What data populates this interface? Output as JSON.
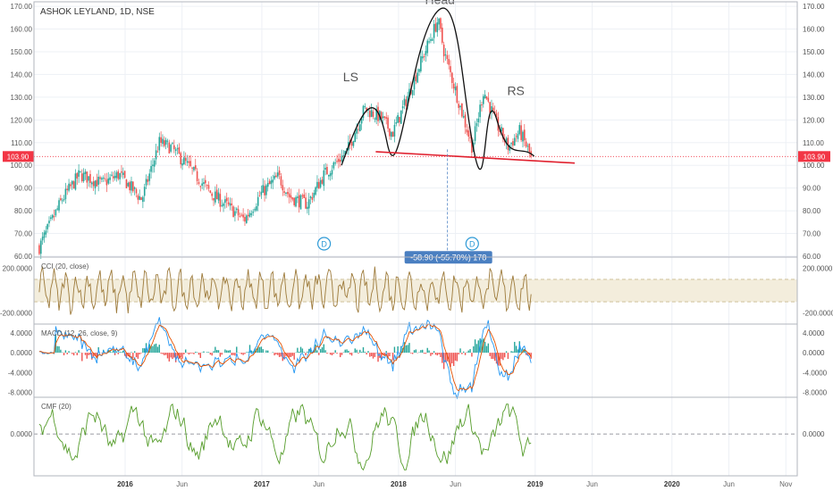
{
  "chart_data": {
    "type": "candlestick",
    "title": "ASHOK LEYLAND, 1D, NSE",
    "price_axis": {
      "ticks": [
        "60.00",
        "70.00",
        "80.00",
        "90.00",
        "100.00",
        "110.00",
        "120.00",
        "130.00",
        "140.00",
        "150.00",
        "160.00",
        "170.00"
      ],
      "ylim": [
        60,
        172
      ]
    },
    "current_price_label": "103.90",
    "time_axis": {
      "labels": [
        "2016",
        "Jun",
        "2017",
        "Jun",
        "2018",
        "Jun",
        "2019",
        "Jun",
        "2020",
        "Jun",
        "Nov"
      ],
      "label_dates": [
        "2016-01",
        "2016-06",
        "2017-01",
        "2017-06",
        "2018-01",
        "2018-06",
        "2019-01",
        "2019-06",
        "2020-01",
        "2020-06",
        "2020-11"
      ],
      "range": [
        "2015-05",
        "2020-12"
      ]
    },
    "price_keypoints": [
      {
        "date": "2015-05-15",
        "value": 64
      },
      {
        "date": "2015-07-15",
        "value": 85
      },
      {
        "date": "2015-09-01",
        "value": 96
      },
      {
        "date": "2015-11-01",
        "value": 92
      },
      {
        "date": "2015-12-15",
        "value": 96
      },
      {
        "date": "2016-02-15",
        "value": 85
      },
      {
        "date": "2016-04-01",
        "value": 110
      },
      {
        "date": "2016-05-01",
        "value": 108
      },
      {
        "date": "2016-06-15",
        "value": 100
      },
      {
        "date": "2016-08-15",
        "value": 88
      },
      {
        "date": "2016-10-01",
        "value": 82
      },
      {
        "date": "2016-11-15",
        "value": 76
      },
      {
        "date": "2017-01-01",
        "value": 88
      },
      {
        "date": "2017-02-15",
        "value": 95
      },
      {
        "date": "2017-03-15",
        "value": 86
      },
      {
        "date": "2017-05-01",
        "value": 83
      },
      {
        "date": "2017-06-15",
        "value": 96
      },
      {
        "date": "2017-08-15",
        "value": 106
      },
      {
        "date": "2017-10-01",
        "value": 125
      },
      {
        "date": "2017-11-15",
        "value": 121
      },
      {
        "date": "2017-12-15",
        "value": 114
      },
      {
        "date": "2018-01-15",
        "value": 126
      },
      {
        "date": "2018-03-01",
        "value": 146
      },
      {
        "date": "2018-04-15",
        "value": 164
      },
      {
        "date": "2018-05-01",
        "value": 150
      },
      {
        "date": "2018-06-15",
        "value": 125
      },
      {
        "date": "2018-07-15",
        "value": 108
      },
      {
        "date": "2018-08-15",
        "value": 133
      },
      {
        "date": "2018-09-20",
        "value": 118
      },
      {
        "date": "2018-10-20",
        "value": 108
      },
      {
        "date": "2018-11-20",
        "value": 115
      },
      {
        "date": "2018-12-20",
        "value": 103.9
      }
    ],
    "annotations": {
      "pattern_labels": [
        "LS",
        "Head",
        "RS"
      ],
      "neckline": {
        "start": {
          "date": "2017-11-01",
          "value": 106
        },
        "end": {
          "date": "2019-04-15",
          "value": 101
        }
      },
      "measure_label": "-58.90 (-55.70%) 178",
      "event_markers": [
        "D",
        "D"
      ]
    },
    "indicators": [
      {
        "name": "CCI (20, close)",
        "ticks": [
          "200.0000",
          "-200.0000"
        ],
        "band": [
          100,
          -100
        ]
      },
      {
        "name": "MACD (12, 26, close, 9)",
        "ticks": [
          "4.0000",
          "0.0000",
          "-4.0000",
          "-8.0000"
        ]
      },
      {
        "name": "CMF (20)",
        "ticks": [
          "0.0000"
        ]
      }
    ],
    "colors": {
      "up": "#26a69a",
      "down": "#ef5350",
      "price_line": "#f23645",
      "neckline": "#e0202e",
      "cci": "#9d7a3a",
      "cci_band": "#f3eddc",
      "macd": "#2196f3",
      "signal": "#e65100",
      "cmf": "#559c2a",
      "badge": "#4a7fc1"
    }
  }
}
